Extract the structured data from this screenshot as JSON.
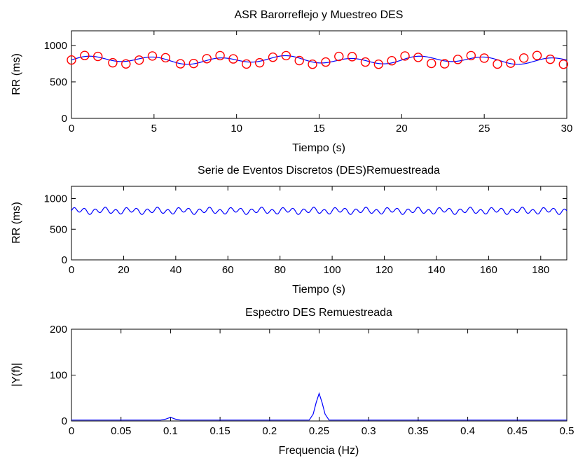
{
  "chart_data": [
    {
      "type": "line",
      "title": "ASR Barorreflejo y Muestreo DES",
      "xlabel": "Tiempo (s)",
      "ylabel": "RR (ms)",
      "xlim": [
        0,
        30
      ],
      "ylim": [
        0,
        1200
      ],
      "xticks": [
        0,
        5,
        10,
        15,
        20,
        25,
        30
      ],
      "yticks": [
        0,
        500,
        1000
      ],
      "grid": false,
      "series": [
        {
          "style": "line",
          "color": "#0000ff",
          "signal": {
            "mean": 800,
            "components": [
              {
                "amplitude": 40,
                "frequency_hz": 0.25
              },
              {
                "amplitude": 20,
                "frequency_hz": 0.1
              }
            ]
          }
        },
        {
          "style": "markers",
          "marker": "circle",
          "color": "#ff0000",
          "x": [
            0.0,
            0.8,
            1.6,
            2.5,
            3.3,
            4.1,
            4.9,
            5.7,
            6.6,
            7.4,
            8.2,
            9.0,
            9.8,
            10.6,
            11.4,
            12.2,
            13.0,
            13.8,
            14.6,
            15.4,
            16.2,
            17.0,
            17.8,
            18.6,
            19.4,
            20.2,
            21.0,
            21.8,
            22.6,
            23.4,
            24.2,
            25.0,
            25.8,
            26.6,
            27.4,
            28.2,
            29.0,
            29.8
          ],
          "y": [
            800,
            862,
            849,
            762,
            746,
            799,
            855,
            831,
            748,
            752,
            818,
            860,
            815,
            745,
            762,
            838,
            860,
            792,
            742,
            772,
            849,
            846,
            772,
            742,
            790,
            855,
            836,
            753,
            748,
            808,
            860,
            826,
            744,
            757,
            827,
            862,
            810,
            742
          ]
        }
      ]
    },
    {
      "type": "line",
      "title": "Serie de Eventos Discretos (DES)Remuestreada",
      "xlabel": "Tiempo (s)",
      "ylabel": "RR (ms)",
      "xlim": [
        0,
        190
      ],
      "ylim": [
        0,
        1200
      ],
      "xticks": [
        0,
        20,
        40,
        60,
        80,
        100,
        120,
        140,
        160,
        180
      ],
      "yticks": [
        0,
        500,
        1000
      ],
      "grid": false,
      "series": [
        {
          "style": "line",
          "color": "#0000ff",
          "signal": {
            "mean": 800,
            "components": [
              {
                "amplitude": 40,
                "frequency_hz": 0.25
              },
              {
                "amplitude": 20,
                "frequency_hz": 0.1
              }
            ]
          }
        }
      ]
    },
    {
      "type": "line",
      "title": "Espectro DES Remuestreada",
      "xlabel": "Frequencia (Hz)",
      "ylabel": "|Y(f)|",
      "xlim": [
        0,
        0.5
      ],
      "ylim": [
        0,
        200
      ],
      "xticks": [
        0,
        0.05,
        0.1,
        0.15,
        0.2,
        0.25,
        0.3,
        0.35,
        0.4,
        0.45,
        0.5
      ],
      "yticks": [
        0,
        100,
        200
      ],
      "grid": false,
      "series": [
        {
          "style": "line",
          "color": "#0000ff",
          "x": [
            0.0,
            0.05,
            0.09,
            0.095,
            0.1,
            0.105,
            0.11,
            0.15,
            0.2,
            0.24,
            0.244,
            0.247,
            0.25,
            0.253,
            0.256,
            0.26,
            0.3,
            0.35,
            0.4,
            0.45,
            0.5
          ],
          "y": [
            2,
            2,
            2,
            4,
            8,
            4,
            2,
            2,
            2,
            2,
            15,
            40,
            60,
            40,
            15,
            2,
            2,
            2,
            2,
            2,
            2
          ]
        }
      ]
    }
  ]
}
